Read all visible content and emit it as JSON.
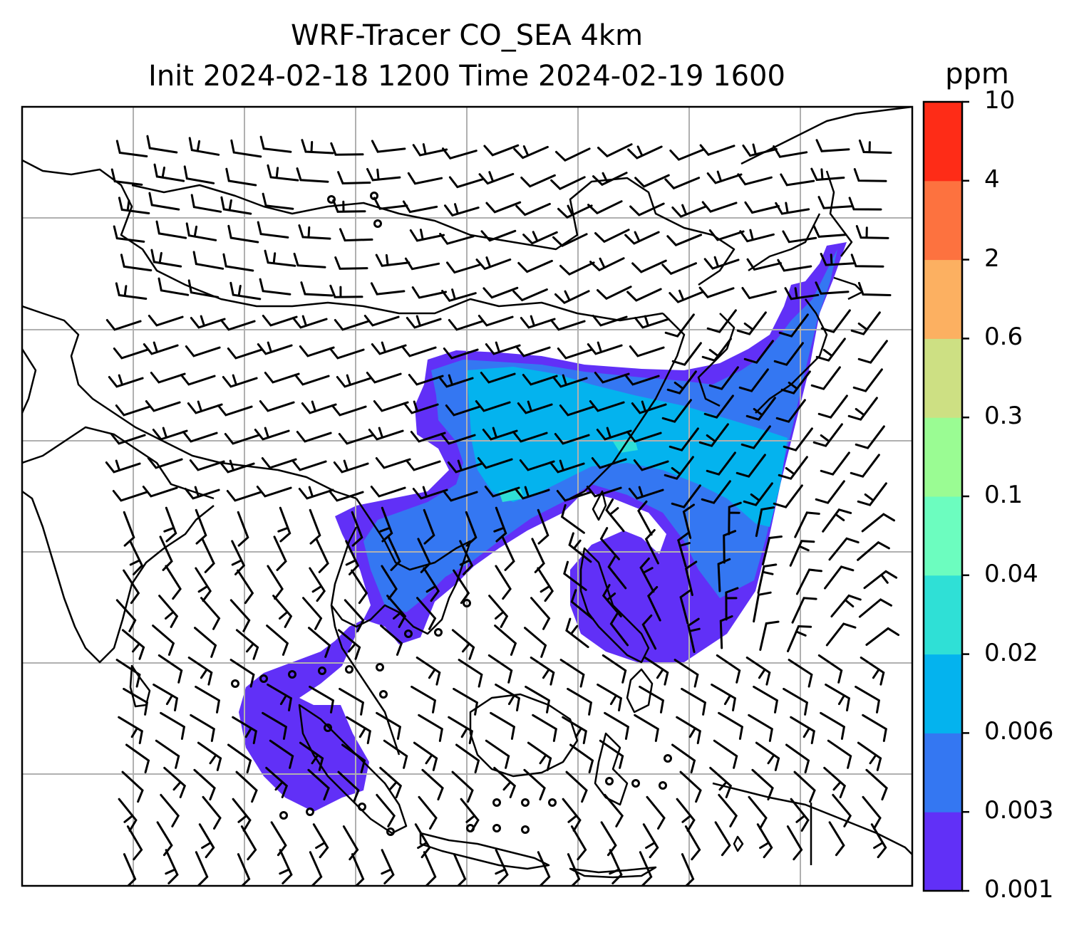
{
  "title": {
    "line1": "WRF-Tracer CO_SEA 4km",
    "line2": "Init 2024-02-18 1200 Time 2024-02-19 1600"
  },
  "colorbar": {
    "unit": "ppm",
    "ticks": [
      "0.001",
      "0.003",
      "0.006",
      "0.02",
      "0.04",
      "0.1",
      "0.3",
      "0.6",
      "2",
      "4",
      "10"
    ],
    "colors": [
      "#6130f7",
      "#3477f2",
      "#04b3ee",
      "#2fe0d6",
      "#6cfdbf",
      "#9afc93",
      "#cde083",
      "#fcb061",
      "#fd723f",
      "#fe2c17"
    ]
  },
  "map": {
    "gridlines": true,
    "wind_barbs": true,
    "field": "CO tracer concentration"
  }
}
